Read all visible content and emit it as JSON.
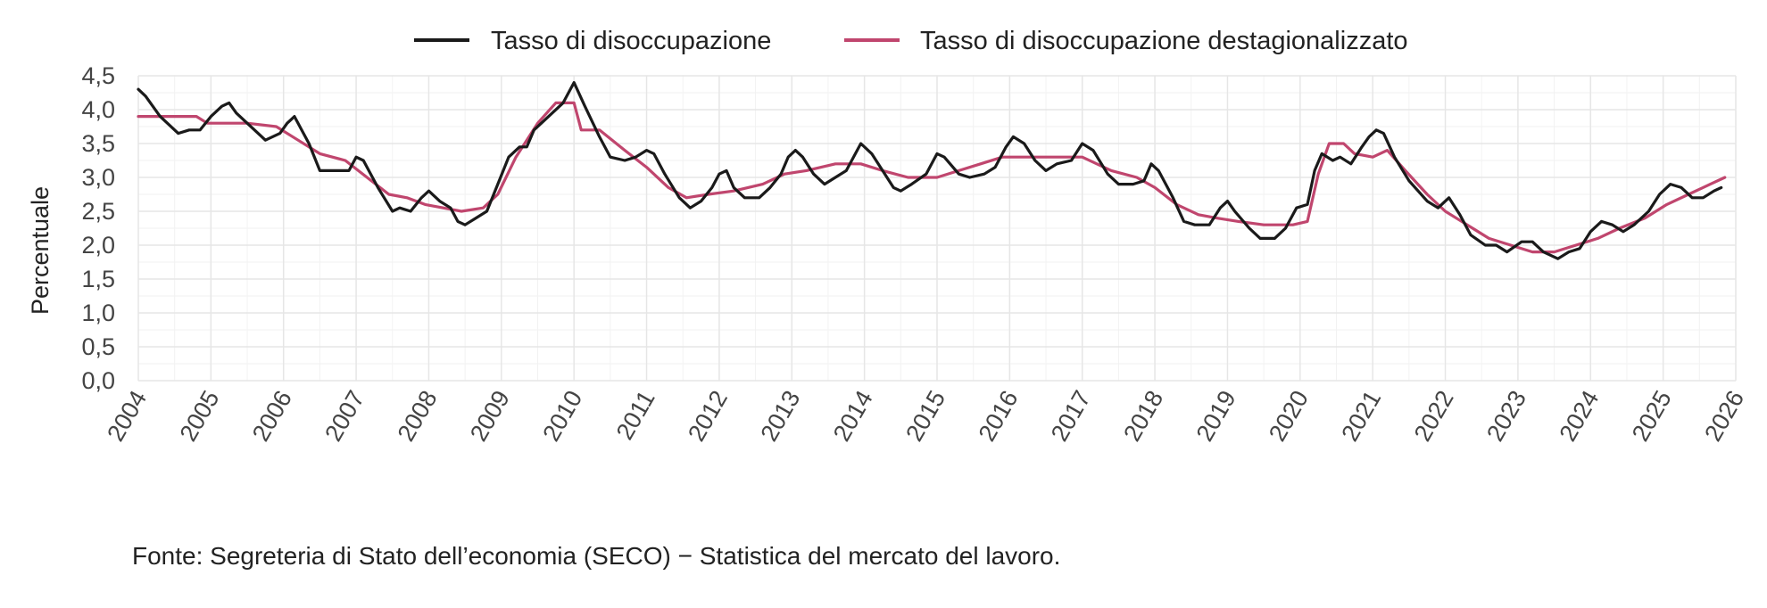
{
  "chart_data": {
    "type": "line",
    "title": "",
    "xlabel": "",
    "ylabel": "Percentuale",
    "ylim": [
      0,
      4.5
    ],
    "yticks": [
      "0,0",
      "0,5",
      "1,0",
      "1,5",
      "2,0",
      "2,5",
      "3,0",
      "3,5",
      "4,0",
      "4,5"
    ],
    "xlim": [
      2004,
      2026
    ],
    "xticks": [
      "2004",
      "2005",
      "2006",
      "2007",
      "2008",
      "2009",
      "2010",
      "2011",
      "2012",
      "2013",
      "2014",
      "2015",
      "2016",
      "2017",
      "2018",
      "2019",
      "2020",
      "2021",
      "2022",
      "2023",
      "2024",
      "2025",
      "2026"
    ],
    "grid": true,
    "legend_position": "top",
    "series": [
      {
        "name": "Tasso di disoccupazione",
        "color": "#1a1a1a",
        "points": [
          [
            2004.0,
            4.3
          ],
          [
            2004.1,
            4.2
          ],
          [
            2004.3,
            3.9
          ],
          [
            2004.55,
            3.65
          ],
          [
            2004.7,
            3.7
          ],
          [
            2004.85,
            3.7
          ],
          [
            2005.0,
            3.9
          ],
          [
            2005.15,
            4.05
          ],
          [
            2005.25,
            4.1
          ],
          [
            2005.35,
            3.95
          ],
          [
            2005.5,
            3.8
          ],
          [
            2005.75,
            3.55
          ],
          [
            2005.95,
            3.65
          ],
          [
            2006.05,
            3.8
          ],
          [
            2006.1,
            3.85
          ],
          [
            2006.15,
            3.9
          ],
          [
            2006.35,
            3.5
          ],
          [
            2006.5,
            3.1
          ],
          [
            2006.75,
            3.1
          ],
          [
            2006.9,
            3.1
          ],
          [
            2007.0,
            3.3
          ],
          [
            2007.1,
            3.25
          ],
          [
            2007.3,
            2.85
          ],
          [
            2007.5,
            2.5
          ],
          [
            2007.6,
            2.55
          ],
          [
            2007.75,
            2.5
          ],
          [
            2007.9,
            2.7
          ],
          [
            2008.0,
            2.8
          ],
          [
            2008.15,
            2.65
          ],
          [
            2008.3,
            2.55
          ],
          [
            2008.4,
            2.35
          ],
          [
            2008.5,
            2.3
          ],
          [
            2008.65,
            2.4
          ],
          [
            2008.8,
            2.5
          ],
          [
            2008.95,
            2.9
          ],
          [
            2009.1,
            3.3
          ],
          [
            2009.25,
            3.45
          ],
          [
            2009.35,
            3.45
          ],
          [
            2009.45,
            3.7
          ],
          [
            2009.7,
            3.95
          ],
          [
            2009.85,
            4.1
          ],
          [
            2009.95,
            4.3
          ],
          [
            2010.0,
            4.4
          ],
          [
            2010.15,
            4.05
          ],
          [
            2010.35,
            3.6
          ],
          [
            2010.5,
            3.3
          ],
          [
            2010.7,
            3.25
          ],
          [
            2010.85,
            3.3
          ],
          [
            2011.0,
            3.4
          ],
          [
            2011.1,
            3.35
          ],
          [
            2011.25,
            3.05
          ],
          [
            2011.45,
            2.7
          ],
          [
            2011.6,
            2.55
          ],
          [
            2011.75,
            2.65
          ],
          [
            2011.9,
            2.85
          ],
          [
            2012.0,
            3.05
          ],
          [
            2012.1,
            3.1
          ],
          [
            2012.2,
            2.85
          ],
          [
            2012.35,
            2.7
          ],
          [
            2012.55,
            2.7
          ],
          [
            2012.7,
            2.85
          ],
          [
            2012.85,
            3.05
          ],
          [
            2012.95,
            3.3
          ],
          [
            2013.05,
            3.4
          ],
          [
            2013.15,
            3.3
          ],
          [
            2013.3,
            3.05
          ],
          [
            2013.45,
            2.9
          ],
          [
            2013.6,
            3.0
          ],
          [
            2013.75,
            3.1
          ],
          [
            2013.95,
            3.5
          ],
          [
            2014.1,
            3.35
          ],
          [
            2014.25,
            3.1
          ],
          [
            2014.4,
            2.85
          ],
          [
            2014.5,
            2.8
          ],
          [
            2014.65,
            2.9
          ],
          [
            2014.85,
            3.05
          ],
          [
            2015.0,
            3.35
          ],
          [
            2015.1,
            3.3
          ],
          [
            2015.3,
            3.05
          ],
          [
            2015.45,
            3.0
          ],
          [
            2015.65,
            3.05
          ],
          [
            2015.8,
            3.15
          ],
          [
            2015.95,
            3.45
          ],
          [
            2016.05,
            3.6
          ],
          [
            2016.2,
            3.5
          ],
          [
            2016.35,
            3.25
          ],
          [
            2016.5,
            3.1
          ],
          [
            2016.65,
            3.2
          ],
          [
            2016.85,
            3.25
          ],
          [
            2017.0,
            3.5
          ],
          [
            2017.15,
            3.4
          ],
          [
            2017.35,
            3.05
          ],
          [
            2017.5,
            2.9
          ],
          [
            2017.7,
            2.9
          ],
          [
            2017.85,
            2.95
          ],
          [
            2017.95,
            3.2
          ],
          [
            2018.05,
            3.1
          ],
          [
            2018.25,
            2.7
          ],
          [
            2018.4,
            2.35
          ],
          [
            2018.55,
            2.3
          ],
          [
            2018.75,
            2.3
          ],
          [
            2018.9,
            2.55
          ],
          [
            2019.0,
            2.65
          ],
          [
            2019.1,
            2.5
          ],
          [
            2019.3,
            2.25
          ],
          [
            2019.45,
            2.1
          ],
          [
            2019.65,
            2.1
          ],
          [
            2019.8,
            2.25
          ],
          [
            2019.95,
            2.55
          ],
          [
            2020.1,
            2.6
          ],
          [
            2020.2,
            3.1
          ],
          [
            2020.3,
            3.35
          ],
          [
            2020.45,
            3.25
          ],
          [
            2020.55,
            3.3
          ],
          [
            2020.7,
            3.2
          ],
          [
            2020.85,
            3.45
          ],
          [
            2020.95,
            3.6
          ],
          [
            2021.05,
            3.7
          ],
          [
            2021.15,
            3.65
          ],
          [
            2021.3,
            3.3
          ],
          [
            2021.5,
            2.95
          ],
          [
            2021.75,
            2.65
          ],
          [
            2021.9,
            2.55
          ],
          [
            2022.05,
            2.7
          ],
          [
            2022.2,
            2.45
          ],
          [
            2022.35,
            2.15
          ],
          [
            2022.55,
            2.0
          ],
          [
            2022.7,
            2.0
          ],
          [
            2022.85,
            1.9
          ],
          [
            2023.05,
            2.05
          ],
          [
            2023.2,
            2.05
          ],
          [
            2023.35,
            1.9
          ],
          [
            2023.55,
            1.8
          ],
          [
            2023.7,
            1.9
          ],
          [
            2023.85,
            1.95
          ],
          [
            2024.0,
            2.2
          ],
          [
            2024.15,
            2.35
          ],
          [
            2024.3,
            2.3
          ],
          [
            2024.45,
            2.2
          ],
          [
            2024.6,
            2.3
          ],
          [
            2024.8,
            2.5
          ],
          [
            2024.95,
            2.75
          ],
          [
            2025.1,
            2.9
          ],
          [
            2025.25,
            2.85
          ],
          [
            2025.4,
            2.7
          ],
          [
            2025.55,
            2.7
          ],
          [
            2025.7,
            2.8
          ],
          [
            2025.8,
            2.85
          ]
        ]
      },
      {
        "name": "Tasso di disoccupazione destagionalizzato",
        "color": "#c0466e",
        "points": [
          [
            2004.0,
            3.9
          ],
          [
            2004.25,
            3.9
          ],
          [
            2004.5,
            3.9
          ],
          [
            2004.8,
            3.9
          ],
          [
            2004.95,
            3.8
          ],
          [
            2005.5,
            3.8
          ],
          [
            2005.9,
            3.75
          ],
          [
            2006.2,
            3.55
          ],
          [
            2006.5,
            3.35
          ],
          [
            2006.85,
            3.25
          ],
          [
            2007.15,
            3.0
          ],
          [
            2007.45,
            2.75
          ],
          [
            2007.7,
            2.7
          ],
          [
            2007.95,
            2.6
          ],
          [
            2008.2,
            2.55
          ],
          [
            2008.45,
            2.5
          ],
          [
            2008.75,
            2.55
          ],
          [
            2008.95,
            2.75
          ],
          [
            2009.2,
            3.3
          ],
          [
            2009.5,
            3.8
          ],
          [
            2009.75,
            4.1
          ],
          [
            2010.0,
            4.1
          ],
          [
            2010.1,
            3.7
          ],
          [
            2010.35,
            3.7
          ],
          [
            2010.7,
            3.4
          ],
          [
            2011.0,
            3.15
          ],
          [
            2011.3,
            2.85
          ],
          [
            2011.55,
            2.7
          ],
          [
            2011.85,
            2.75
          ],
          [
            2012.2,
            2.8
          ],
          [
            2012.6,
            2.9
          ],
          [
            2012.9,
            3.05
          ],
          [
            2013.2,
            3.1
          ],
          [
            2013.6,
            3.2
          ],
          [
            2013.95,
            3.2
          ],
          [
            2014.25,
            3.1
          ],
          [
            2014.6,
            3.0
          ],
          [
            2015.0,
            3.0
          ],
          [
            2015.3,
            3.1
          ],
          [
            2015.6,
            3.2
          ],
          [
            2015.9,
            3.3
          ],
          [
            2016.3,
            3.3
          ],
          [
            2016.7,
            3.3
          ],
          [
            2017.0,
            3.3
          ],
          [
            2017.4,
            3.1
          ],
          [
            2017.75,
            3.0
          ],
          [
            2018.0,
            2.85
          ],
          [
            2018.3,
            2.6
          ],
          [
            2018.6,
            2.45
          ],
          [
            2018.85,
            2.4
          ],
          [
            2019.15,
            2.35
          ],
          [
            2019.5,
            2.3
          ],
          [
            2019.9,
            2.3
          ],
          [
            2020.1,
            2.35
          ],
          [
            2020.25,
            3.05
          ],
          [
            2020.4,
            3.5
          ],
          [
            2020.6,
            3.5
          ],
          [
            2020.75,
            3.35
          ],
          [
            2021.0,
            3.3
          ],
          [
            2021.2,
            3.4
          ],
          [
            2021.45,
            3.1
          ],
          [
            2021.75,
            2.75
          ],
          [
            2022.0,
            2.5
          ],
          [
            2022.3,
            2.3
          ],
          [
            2022.6,
            2.1
          ],
          [
            2022.9,
            2.0
          ],
          [
            2023.2,
            1.9
          ],
          [
            2023.5,
            1.9
          ],
          [
            2023.8,
            2.0
          ],
          [
            2024.1,
            2.1
          ],
          [
            2024.4,
            2.25
          ],
          [
            2024.75,
            2.4
          ],
          [
            2025.05,
            2.6
          ],
          [
            2025.35,
            2.75
          ],
          [
            2025.65,
            2.9
          ],
          [
            2025.85,
            3.0
          ]
        ]
      }
    ],
    "source": "Fonte: Segreteria di Stato dell’economia (SECO) − Statistica del mercato del lavoro."
  }
}
